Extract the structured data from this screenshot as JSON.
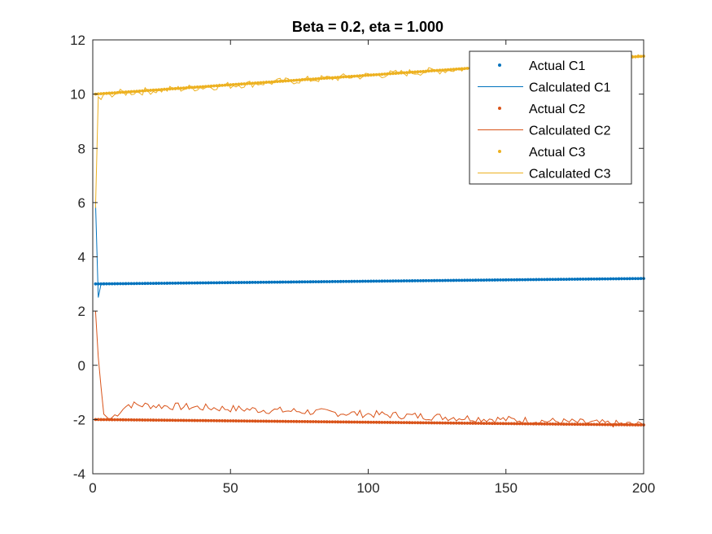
{
  "chart_data": {
    "type": "line",
    "title": "Beta = 0.2, eta = 1.000",
    "xlabel": "",
    "ylabel": "",
    "xlim": [
      0,
      200
    ],
    "ylim": [
      -4,
      12
    ],
    "xticks": [
      0,
      50,
      100,
      150,
      200
    ],
    "yticks": [
      -4,
      -2,
      0,
      2,
      4,
      6,
      8,
      10,
      12
    ],
    "grid": false,
    "legend_position": "top-right",
    "colors": {
      "c1": "#0072BD",
      "c2": "#D95319",
      "c3": "#EDB120"
    },
    "series": [
      {
        "name": "Actual C1",
        "style": "dots",
        "color": "#0072BD",
        "x_start": 1,
        "x_end": 200,
        "y_start": 3.0,
        "y_end": 3.2
      },
      {
        "name": "Calculated C1",
        "style": "line",
        "color": "#0072BD",
        "points": [
          [
            1,
            6.0
          ],
          [
            2,
            2.5
          ],
          [
            3,
            3.0
          ],
          [
            200,
            3.2
          ]
        ]
      },
      {
        "name": "Actual C2",
        "style": "dots",
        "color": "#D95319",
        "x_start": 1,
        "x_end": 200,
        "y_start": -2.0,
        "y_end": -2.2
      },
      {
        "name": "Calculated C2",
        "style": "line-noisy",
        "color": "#D95319",
        "points": [
          [
            1,
            2.0
          ],
          [
            2,
            0.3
          ],
          [
            3,
            -0.8
          ],
          [
            4,
            -1.8
          ],
          [
            6,
            -2.0
          ],
          [
            13,
            -1.45
          ],
          [
            200,
            -2.2
          ]
        ]
      },
      {
        "name": "Actual C3",
        "style": "dots",
        "color": "#EDB120",
        "x_start": 1,
        "x_end": 200,
        "y_start": 10.0,
        "y_end": 11.4
      },
      {
        "name": "Calculated C3",
        "style": "line-noisy",
        "color": "#EDB120",
        "points": [
          [
            1,
            5.8
          ],
          [
            2,
            9.9
          ],
          [
            3,
            9.8
          ],
          [
            4,
            10.0
          ],
          [
            200,
            11.4
          ]
        ]
      }
    ]
  }
}
